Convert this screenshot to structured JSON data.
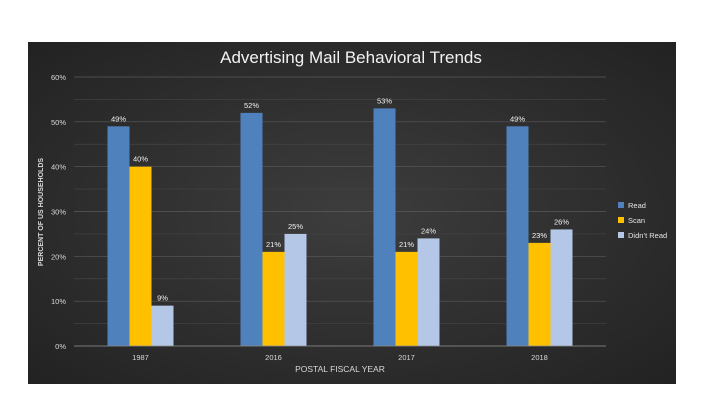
{
  "chart_data": {
    "type": "bar",
    "title": "Advertising Mail Behavioral Trends",
    "xlabel": "POSTAL FISCAL YEAR",
    "ylabel": "PERCENT OF US HOUSEHOLDS",
    "categories": [
      "1987",
      "2016",
      "2017",
      "2018"
    ],
    "ylim": [
      0,
      60
    ],
    "yticks": [
      "0%",
      "10%",
      "20%",
      "30%",
      "40%",
      "50%",
      "60%"
    ],
    "grid": true,
    "legend_position": "right",
    "series": [
      {
        "name": "Read",
        "values": [
          49,
          52,
          53,
          49
        ],
        "labels": [
          "49%",
          "52%",
          "53%",
          "49%"
        ],
        "color": "#4f81bd"
      },
      {
        "name": "Scan",
        "values": [
          40,
          21,
          21,
          23
        ],
        "labels": [
          "40%",
          "21%",
          "21%",
          "23%"
        ],
        "color": "#ffc000"
      },
      {
        "name": "Didn’t Read",
        "values": [
          9,
          25,
          24,
          26
        ],
        "labels": [
          "9%",
          "25%",
          "24%",
          "26%"
        ],
        "color": "#b4c7e7"
      }
    ]
  }
}
